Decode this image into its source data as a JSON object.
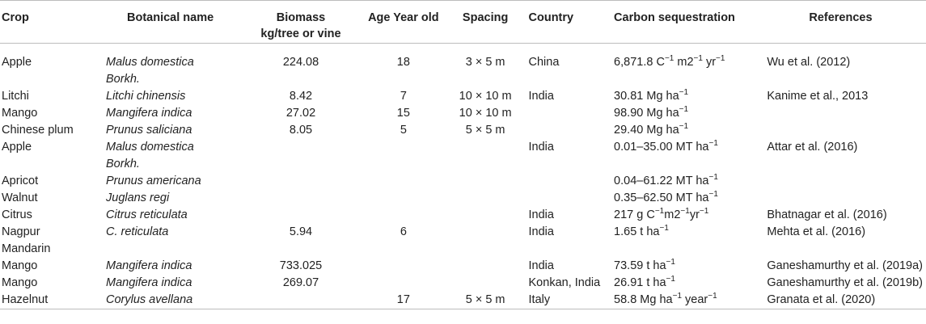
{
  "table": {
    "headers": {
      "crop": "Crop",
      "botanical": "Botanical name",
      "biomass_line1": "Biomass",
      "biomass_line2": "kg/tree or vine",
      "age": "Age Year old",
      "spacing": "Spacing",
      "country": "Country",
      "carbon": "Carbon sequestration",
      "references": "References"
    },
    "rows": [
      {
        "crop": "Apple",
        "crop2": "",
        "botanical": "Malus domestica",
        "botanical2": "Borkh.",
        "biomass": "224.08",
        "age": "18",
        "spacing": "3 × 5 m",
        "country": "China",
        "carbon_pre": "6,871.8 C",
        "carbon_sup1": "−1",
        "carbon_mid": " m2",
        "carbon_sup2": "−1",
        "carbon_mid2": " yr",
        "carbon_sup3": "−1",
        "references": "Wu et al. (2012)"
      },
      {
        "crop": "Litchi",
        "crop2": "",
        "botanical": "Litchi chinensis",
        "botanical2": "",
        "biomass": "8.42",
        "age": "7",
        "spacing": "10 × 10 m",
        "country": "India",
        "carbon_pre": "30.81 Mg ha",
        "carbon_sup1": "−1",
        "carbon_mid": "",
        "carbon_sup2": "",
        "carbon_mid2": "",
        "carbon_sup3": "",
        "references": "Kanime et al., 2013"
      },
      {
        "crop": "Mango",
        "crop2": "",
        "botanical": "Mangifera indica",
        "botanical2": "",
        "biomass": "27.02",
        "age": "15",
        "spacing": "10 × 10 m",
        "country": "",
        "carbon_pre": "98.90 Mg ha",
        "carbon_sup1": "−1",
        "carbon_mid": "",
        "carbon_sup2": "",
        "carbon_mid2": "",
        "carbon_sup3": "",
        "references": ""
      },
      {
        "crop": "Chinese plum",
        "crop2": "",
        "botanical": "Prunus saliciana",
        "botanical2": "",
        "biomass": "8.05",
        "age": "5",
        "spacing": "5 × 5 m",
        "country": "",
        "carbon_pre": "29.40 Mg ha",
        "carbon_sup1": "−1",
        "carbon_mid": "",
        "carbon_sup2": "",
        "carbon_mid2": "",
        "carbon_sup3": "",
        "references": ""
      },
      {
        "crop": "Apple",
        "crop2": "",
        "botanical": "Malus domestica",
        "botanical2": "Borkh.",
        "biomass": "",
        "age": "",
        "spacing": "",
        "country": "India",
        "carbon_pre": "0.01–35.00 MT ha",
        "carbon_sup1": "−1",
        "carbon_mid": "",
        "carbon_sup2": "",
        "carbon_mid2": "",
        "carbon_sup3": "",
        "references": "Attar et al. (2016)"
      },
      {
        "crop": "Apricot",
        "crop2": "",
        "botanical": "Prunus americana",
        "botanical2": "",
        "biomass": "",
        "age": "",
        "spacing": "",
        "country": "",
        "carbon_pre": "0.04–61.22 MT ha",
        "carbon_sup1": "−1",
        "carbon_mid": "",
        "carbon_sup2": "",
        "carbon_mid2": "",
        "carbon_sup3": "",
        "references": ""
      },
      {
        "crop": "Walnut",
        "crop2": "",
        "botanical": "Juglans regi",
        "botanical2": "",
        "biomass": "",
        "age": "",
        "spacing": "",
        "country": "",
        "carbon_pre": "0.35–62.50 MT ha",
        "carbon_sup1": "−1",
        "carbon_mid": "",
        "carbon_sup2": "",
        "carbon_mid2": "",
        "carbon_sup3": "",
        "references": ""
      },
      {
        "crop": "Citrus",
        "crop2": "",
        "botanical": "Citrus reticulata",
        "botanical2": "",
        "biomass": "",
        "age": "",
        "spacing": "",
        "country": "India",
        "carbon_pre": "217 g C",
        "carbon_sup1": "−1",
        "carbon_mid": "m2",
        "carbon_sup2": "−1",
        "carbon_mid2": "yr",
        "carbon_sup3": "−1",
        "references": "Bhatnagar et al. (2016)"
      },
      {
        "crop": "Nagpur",
        "crop2": "Mandarin",
        "botanical": "C. reticulata",
        "botanical2": "",
        "biomass": "5.94",
        "age": "6",
        "spacing": "",
        "country": "India",
        "carbon_pre": "1.65 t ha",
        "carbon_sup1": "−1",
        "carbon_mid": "",
        "carbon_sup2": "",
        "carbon_mid2": "",
        "carbon_sup3": "",
        "references": "Mehta et al. (2016)"
      },
      {
        "crop": "Mango",
        "crop2": "",
        "botanical": "Mangifera indica",
        "botanical2": "",
        "biomass": "733.025",
        "age": "",
        "spacing": "",
        "country": "India",
        "carbon_pre": "73.59 t ha",
        "carbon_sup1": "−1",
        "carbon_mid": "",
        "carbon_sup2": "",
        "carbon_mid2": "",
        "carbon_sup3": "",
        "references": "Ganeshamurthy et al. (2019a)"
      },
      {
        "crop": "Mango",
        "crop2": "",
        "botanical": "Mangifera indica",
        "botanical2": "",
        "biomass": "269.07",
        "age": "",
        "spacing": "",
        "country": "Konkan, India",
        "carbon_pre": "26.91 t ha",
        "carbon_sup1": "−1",
        "carbon_mid": "",
        "carbon_sup2": "",
        "carbon_mid2": "",
        "carbon_sup3": "",
        "references": "Ganeshamurthy et al. (2019b)"
      },
      {
        "crop": "Hazelnut",
        "crop2": "",
        "botanical": "Corylus avellana",
        "botanical2": "",
        "biomass": "",
        "age": "17",
        "spacing": "5 × 5 m",
        "country": "Italy",
        "carbon_pre": "58.8 Mg ha",
        "carbon_sup1": "−1",
        "carbon_mid": " year",
        "carbon_sup2": "−1",
        "carbon_mid2": "",
        "carbon_sup3": "",
        "references": "Granata et al. (2020)"
      }
    ]
  }
}
